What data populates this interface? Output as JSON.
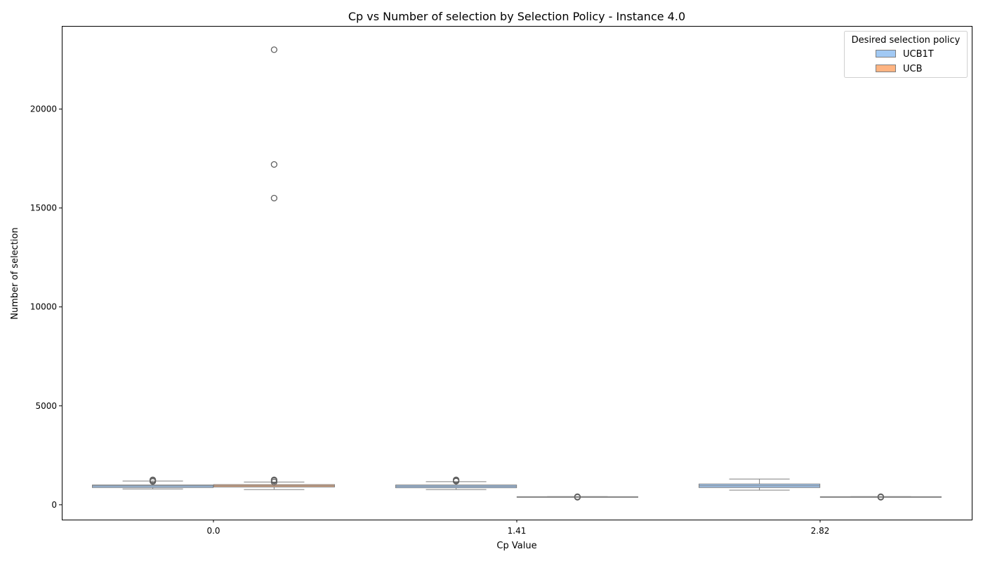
{
  "chart_data": {
    "type": "box",
    "title": "Cp vs Number of selection by Selection Policy - Instance 4.0",
    "xlabel": "Cp Value",
    "ylabel": "Number of selection",
    "categories": [
      "0.0",
      "1.41",
      "2.82"
    ],
    "ylim": [
      -750,
      24200
    ],
    "yticks": [
      0,
      5000,
      10000,
      15000,
      20000
    ],
    "grid": false,
    "legend": {
      "title": "Desired selection policy",
      "position": "top-right"
    },
    "series": [
      {
        "name": "UCB1T",
        "color": "#a1c9f4",
        "boxes": [
          {
            "category": "0.0",
            "whisker_low": 800,
            "q1": 870,
            "median": 950,
            "q3": 1000,
            "whisker_high": 1200,
            "outliers": [
              1180,
              1230,
              1260
            ]
          },
          {
            "category": "1.41",
            "whisker_low": 770,
            "q1": 860,
            "median": 940,
            "q3": 1000,
            "whisker_high": 1170,
            "outliers": [
              1190,
              1230,
              1260
            ]
          },
          {
            "category": "2.82",
            "whisker_low": 740,
            "q1": 870,
            "median": 960,
            "q3": 1050,
            "whisker_high": 1300,
            "outliers": []
          }
        ]
      },
      {
        "name": "UCB",
        "color": "#ffb482",
        "boxes": [
          {
            "category": "0.0",
            "whisker_low": 770,
            "q1": 900,
            "median": 960,
            "q3": 1020,
            "whisker_high": 1150,
            "outliers": [
              1150,
              1220,
              1260,
              15500,
              17200,
              23000
            ]
          },
          {
            "category": "1.41",
            "whisker_low": 390,
            "q1": 390,
            "median": 400,
            "q3": 410,
            "whisker_high": 410,
            "outliers": [
              380,
              410
            ]
          },
          {
            "category": "2.82",
            "whisker_low": 390,
            "q1": 390,
            "median": 400,
            "q3": 410,
            "whisker_high": 410,
            "outliers": [
              380,
              410
            ]
          }
        ]
      }
    ]
  }
}
